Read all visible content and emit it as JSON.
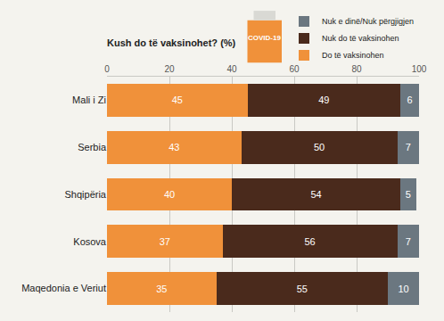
{
  "chart_data": {
    "type": "bar",
    "title": "Kush do të vaksinohet? (%)",
    "icon_text": "COVID-19",
    "orientation": "horizontal",
    "stacked": true,
    "data_labels": true,
    "grid": true,
    "legend": "top right",
    "categories": [
      "Mali i Zi",
      "Serbia",
      "Shqipëria",
      "Kosova",
      "Maqedonia e Veriut"
    ],
    "series": [
      {
        "name": "Do të vaksinohen",
        "color": "#f0913a",
        "values": [
          45,
          43,
          40,
          37,
          35
        ]
      },
      {
        "name": "Nuk do të vaksinohen",
        "color": "#4a2a1c",
        "values": [
          49,
          50,
          54,
          56,
          55
        ]
      },
      {
        "name": "Nuk e dinë/Nuk përgjigjen",
        "color": "#6b7780",
        "values": [
          6,
          7,
          5,
          7,
          10
        ]
      }
    ],
    "xlim": [
      0,
      100
    ],
    "xticks": [
      0,
      20,
      40,
      60,
      80,
      100
    ]
  }
}
